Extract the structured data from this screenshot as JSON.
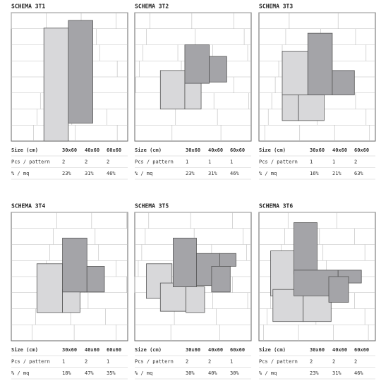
{
  "panels": [
    {
      "title": "SCHEMA 3T1",
      "table": {
        "header": [
          "Size (cm)",
          "30x60",
          "40x60",
          "60x60"
        ],
        "rows": [
          [
            "Pcs / pattern",
            "2",
            "2",
            "2"
          ],
          [
            "% / mq",
            "23%",
            "31%",
            "46%"
          ]
        ]
      }
    },
    {
      "title": "SCHEMA 3T2",
      "table": {
        "header": [
          "Size (cm)",
          "30x60",
          "40x60",
          "60x60"
        ],
        "rows": [
          [
            "Pcs / pattern",
            "1",
            "1",
            "1"
          ],
          [
            "% / mq",
            "23%",
            "31%",
            "46%"
          ]
        ]
      }
    },
    {
      "title": "SCHEMA 3T3",
      "table": {
        "header": [
          "Size (cm)",
          "30x60",
          "40x60",
          "60x60"
        ],
        "rows": [
          [
            "Pcs / pattern",
            "1",
            "1",
            "2"
          ],
          [
            "% / mq",
            "16%",
            "21%",
            "63%"
          ]
        ]
      }
    },
    {
      "title": "SCHEMA 3T4",
      "table": {
        "header": [
          "Size (cm)",
          "30x60",
          "40x60",
          "60x60"
        ],
        "rows": [
          [
            "Pcs / pattern",
            "1",
            "2",
            "1"
          ],
          [
            "% / mq",
            "18%",
            "47%",
            "35%"
          ]
        ]
      }
    },
    {
      "title": "SCHEMA 3T5",
      "table": {
        "header": [
          "Size (cm)",
          "30x60",
          "40x60",
          "60x60"
        ],
        "rows": [
          [
            "Pcs / pattern",
            "2",
            "2",
            "1"
          ],
          [
            "% / mq",
            "30%",
            "40%",
            "30%"
          ]
        ]
      }
    },
    {
      "title": "SCHEMA 3T6",
      "table": {
        "header": [
          "Size (cm)",
          "30x60",
          "40x60",
          "60x60"
        ],
        "rows": [
          [
            "Pcs / pattern",
            "2",
            "2",
            "2"
          ],
          [
            "% / mq",
            "23%",
            "31%",
            "46%"
          ]
        ]
      }
    }
  ]
}
